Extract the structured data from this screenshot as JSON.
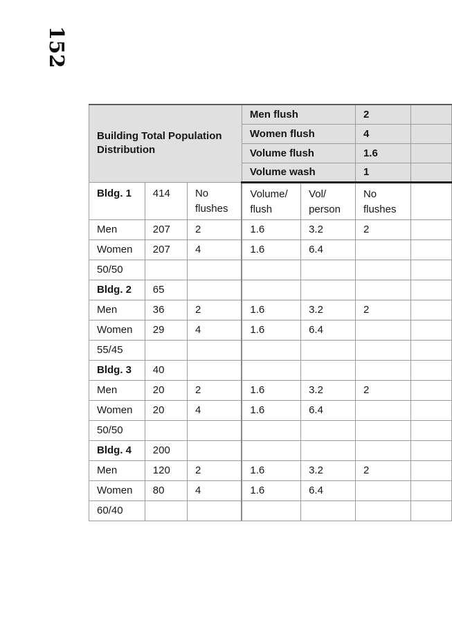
{
  "page_number": "152",
  "colors": {
    "header_bg": "#e0e0e0",
    "border_thin": "#9b9b9b",
    "border_heavy": "#1f1f1f",
    "text": "#161616"
  },
  "table": {
    "title": "Building Total Population Distribution",
    "parameters": [
      {
        "label": "Men flush",
        "value": "2"
      },
      {
        "label": "Women flush",
        "value": "4"
      },
      {
        "label": "Volume flush",
        "value": "1.6"
      },
      {
        "label": "Volume wash",
        "value": "1"
      }
    ],
    "rows": [
      {
        "cells": [
          "Bldg. 1",
          "414",
          "No\nflushes",
          "Volume/\nflush",
          "Vol/\nperson",
          "No\nflushes",
          ""
        ],
        "bold_first": true,
        "header_row": true
      },
      {
        "cells": [
          "Men",
          "207",
          "2",
          "1.6",
          "3.2",
          "2",
          ""
        ]
      },
      {
        "cells": [
          "Women",
          "207",
          "4",
          "1.6",
          "6.4",
          "",
          ""
        ]
      },
      {
        "cells": [
          "50/50",
          "",
          "",
          "",
          "",
          "",
          ""
        ]
      },
      {
        "cells": [
          "Bldg. 2",
          "65",
          "",
          "",
          "",
          "",
          ""
        ],
        "bold_first": true
      },
      {
        "cells": [
          "Men",
          "36",
          "2",
          "1.6",
          "3.2",
          "2",
          ""
        ]
      },
      {
        "cells": [
          "Women",
          "29",
          "4",
          "1.6",
          "6.4",
          "",
          ""
        ]
      },
      {
        "cells": [
          "55/45",
          "",
          "",
          "",
          "",
          "",
          ""
        ]
      },
      {
        "cells": [
          "Bldg. 3",
          "40",
          "",
          "",
          "",
          "",
          ""
        ],
        "bold_first": true
      },
      {
        "cells": [
          "Men",
          "20",
          "2",
          "1.6",
          "3.2",
          "2",
          ""
        ]
      },
      {
        "cells": [
          "Women",
          "20",
          "4",
          "1.6",
          "6.4",
          "",
          ""
        ]
      },
      {
        "cells": [
          "50/50",
          "",
          "",
          "",
          "",
          "",
          ""
        ]
      },
      {
        "cells": [
          "Bldg. 4",
          "200",
          "",
          "",
          "",
          "",
          ""
        ],
        "bold_first": true
      },
      {
        "cells": [
          "Men",
          "120",
          "2",
          "1.6",
          "3.2",
          "2",
          ""
        ]
      },
      {
        "cells": [
          "Women",
          "80",
          "4",
          "1.6",
          "6.4",
          "",
          ""
        ]
      },
      {
        "cells": [
          "60/40",
          "",
          "",
          "",
          "",
          "",
          ""
        ]
      }
    ]
  }
}
